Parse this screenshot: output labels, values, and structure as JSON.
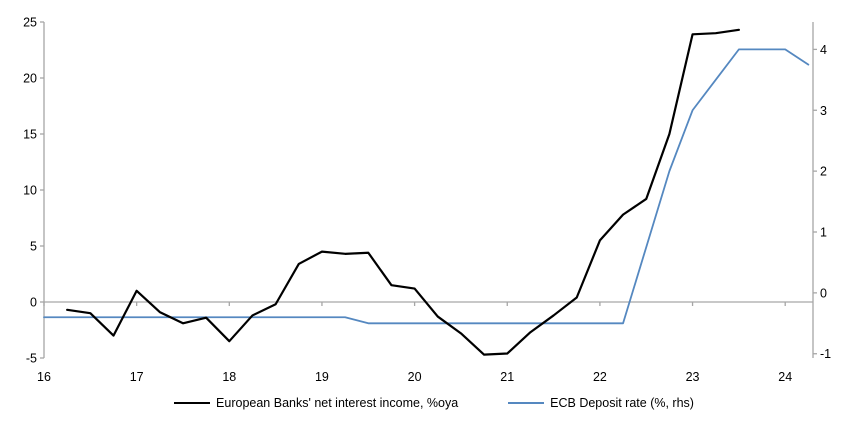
{
  "chart_data": {
    "type": "line",
    "title": "",
    "legend_position": "bottom",
    "grid": "zero-line-only",
    "x_axis": {
      "ticks": [
        16,
        17,
        18,
        19,
        20,
        21,
        22,
        23,
        24
      ],
      "range": [
        16,
        24.3
      ]
    },
    "y_axis_left": {
      "label": "%oya",
      "ticks": [
        -5,
        0,
        5,
        10,
        15,
        20,
        25
      ],
      "range": [
        -5,
        25
      ]
    },
    "y_axis_right": {
      "label": "%, rhs",
      "ticks": [
        -1,
        0,
        1,
        2,
        3,
        4
      ],
      "range": [
        -1.07,
        4.45
      ]
    },
    "series": [
      {
        "name": "European Banks' net interest income, %oya",
        "axis": "left",
        "color": "#000000",
        "stroke_width": 2.2,
        "x": [
          16.25,
          16.5,
          16.75,
          17.0,
          17.25,
          17.5,
          17.75,
          18.0,
          18.25,
          18.5,
          18.75,
          19.0,
          19.25,
          19.5,
          19.75,
          20.0,
          20.25,
          20.5,
          20.75,
          21.0,
          21.25,
          21.5,
          21.75,
          22.0,
          22.25,
          22.5,
          22.75,
          23.0,
          23.25,
          23.5
        ],
        "values": [
          -0.7,
          -1.0,
          -3.0,
          1.0,
          -0.9,
          -1.9,
          -1.4,
          -3.5,
          -1.2,
          -0.2,
          3.4,
          4.5,
          4.3,
          4.4,
          1.5,
          1.2,
          -1.3,
          -2.8,
          -4.7,
          -4.6,
          -2.7,
          -1.2,
          0.4,
          5.5,
          7.8,
          9.2,
          15.0,
          23.9,
          24.0,
          24.3
        ]
      },
      {
        "name": "ECB Deposit rate (%, rhs)",
        "axis": "right",
        "color": "#5588c0",
        "stroke_width": 1.8,
        "x": [
          16.0,
          16.25,
          16.5,
          16.75,
          17.0,
          17.25,
          17.5,
          17.75,
          18.0,
          18.25,
          18.5,
          18.75,
          19.0,
          19.25,
          19.5,
          19.75,
          20.0,
          20.25,
          20.5,
          20.75,
          21.0,
          21.25,
          21.5,
          21.75,
          22.0,
          22.25,
          22.5,
          22.75,
          23.0,
          23.25,
          23.5,
          23.75,
          24.0,
          24.25
        ],
        "values": [
          -0.4,
          -0.4,
          -0.4,
          -0.4,
          -0.4,
          -0.4,
          -0.4,
          -0.4,
          -0.4,
          -0.4,
          -0.4,
          -0.4,
          -0.4,
          -0.4,
          -0.5,
          -0.5,
          -0.5,
          -0.5,
          -0.5,
          -0.5,
          -0.5,
          -0.5,
          -0.5,
          -0.5,
          -0.5,
          -0.5,
          0.75,
          2.0,
          3.0,
          3.5,
          4.0,
          4.0,
          4.0,
          3.75
        ]
      }
    ]
  },
  "colors": {
    "axis_gray": "#a6a6a6",
    "text": "#000000",
    "background": "#ffffff",
    "series_black": "#000000",
    "series_blue": "#5588c0"
  }
}
